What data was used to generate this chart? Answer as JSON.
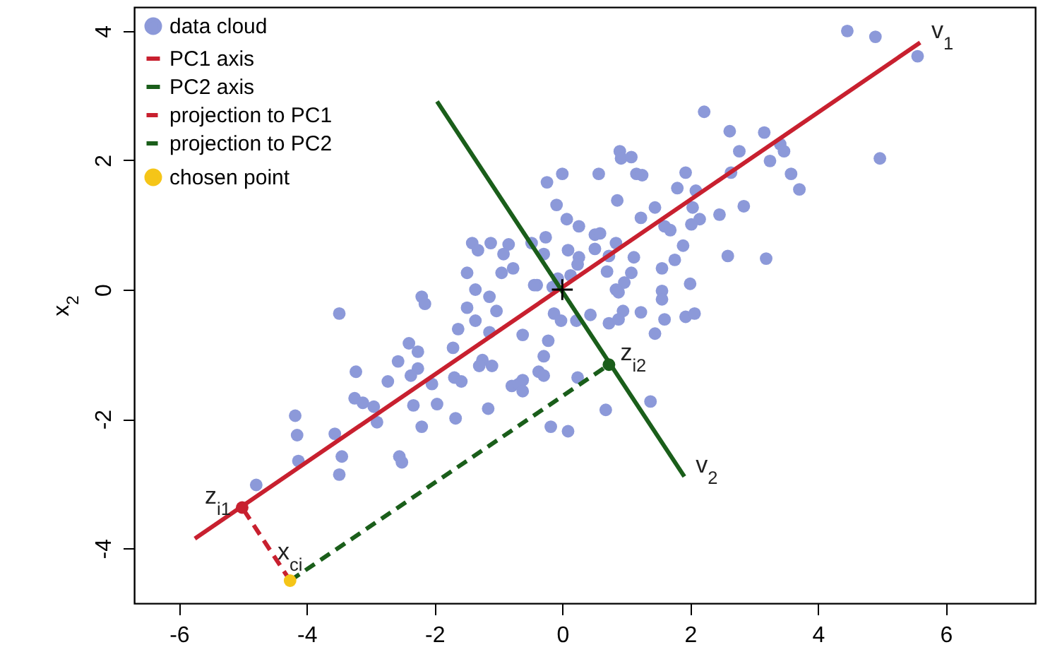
{
  "chart_data": {
    "type": "scatter",
    "ylabel": "x$_{2}$",
    "xlim": [
      -6.7,
      7.4
    ],
    "ylim": [
      -4.85,
      4.37
    ],
    "xticks": [
      -6,
      -4,
      -2,
      0,
      2,
      4,
      6
    ],
    "yticks": [
      -4,
      -2,
      0,
      2,
      4
    ],
    "grid": false,
    "legend": "top left",
    "series": [
      {
        "name": "data cloud",
        "marker": "circle",
        "color": "#8c99d9",
        "x": [
          4.46,
          4.9,
          5.56,
          2.22,
          2.62,
          3.16,
          3.41,
          3.47,
          2.77,
          3.25,
          4.97,
          3.58,
          3.71,
          0.9,
          0.92,
          1.08,
          1.16,
          1.25,
          0.57,
          0.0,
          -0.24,
          1.93,
          1.8,
          2.09,
          2.64,
          0.86,
          -0.09,
          1.45,
          1.23,
          2.04,
          2.46,
          2.84,
          2.15,
          2.02,
          1.6,
          1.69,
          0.07,
          0.26,
          0.51,
          0.59,
          -0.26,
          0.84,
          0.51,
          0.09,
          1.89,
          1.76,
          2.59,
          3.19,
          -0.29,
          0.26,
          0.24,
          0.73,
          1.12,
          0.7,
          1.08,
          1.56,
          0.13,
          0.97,
          0.84,
          0.88,
          1.56,
          1.56,
          2.0,
          -0.4,
          -0.15,
          -1.41,
          -1.12,
          -1.32,
          -0.84,
          -0.92,
          -0.48,
          -1.49,
          -0.95,
          -0.77,
          -0.44,
          -0.07,
          -2.2,
          -2.15,
          -1.36,
          -1.14,
          -1.03,
          -1.49,
          -3.49,
          -0.13,
          -0.02,
          0.44,
          0.73,
          0.95,
          1.23,
          1.6,
          1.93,
          2.07,
          0.22,
          0.88,
          1.45,
          -0.22,
          -0.29,
          -0.37,
          -0.29,
          0.24,
          0.68,
          1.38,
          -0.18,
          0.09,
          -1.63,
          -1.36,
          -1.14,
          -0.62,
          -2.4,
          -2.26,
          -1.71,
          -2.57,
          -2.26,
          -2.37,
          -3.23,
          -2.73,
          -2.04,
          -1.69,
          -1.58,
          -1.25,
          -1.3,
          -1.1,
          -0.79,
          -0.62,
          -0.68,
          -0.62,
          -3.25,
          -3.12,
          -2.95,
          -2.9,
          -2.33,
          -1.96,
          -1.16,
          -1.67,
          -2.2,
          -4.18,
          -4.15,
          -3.56,
          -4.13,
          -3.45,
          -3.49,
          -2.55,
          -2.51,
          -4.79
        ],
        "values": [
          4.0,
          3.91,
          3.61,
          2.75,
          2.45,
          2.43,
          2.25,
          2.14,
          2.14,
          1.99,
          2.03,
          1.79,
          1.55,
          2.14,
          2.03,
          2.05,
          1.79,
          1.77,
          1.79,
          1.79,
          1.66,
          1.81,
          1.57,
          1.53,
          1.81,
          1.38,
          1.31,
          1.27,
          1.11,
          1.27,
          1.16,
          1.29,
          1.09,
          1.01,
          0.98,
          0.92,
          1.09,
          0.98,
          0.85,
          0.87,
          0.81,
          0.72,
          0.63,
          0.61,
          0.68,
          0.46,
          0.52,
          0.48,
          0.55,
          0.5,
          0.39,
          0.52,
          0.5,
          0.28,
          0.26,
          0.33,
          0.22,
          0.11,
          0.0,
          -0.04,
          -0.02,
          -0.15,
          0.09,
          0.07,
          0.04,
          0.72,
          0.72,
          0.61,
          0.7,
          0.55,
          0.72,
          0.26,
          0.26,
          0.33,
          0.07,
          0.17,
          -0.11,
          -0.22,
          0.0,
          -0.11,
          -0.33,
          -0.28,
          -0.37,
          -0.37,
          -0.48,
          -0.39,
          -0.52,
          -0.33,
          -0.35,
          -0.46,
          -0.42,
          -0.37,
          -0.48,
          -0.46,
          -0.68,
          -0.79,
          -1.03,
          -1.27,
          -1.33,
          -1.36,
          -1.86,
          -1.73,
          -2.12,
          -2.19,
          -0.61,
          -0.48,
          -0.66,
          -0.7,
          -0.83,
          -0.96,
          -0.9,
          -1.11,
          -1.22,
          -1.33,
          -1.27,
          -1.42,
          -1.46,
          -1.36,
          -1.42,
          -1.09,
          -1.18,
          -1.18,
          -1.49,
          -1.4,
          -1.46,
          -1.57,
          -1.68,
          -1.75,
          -1.81,
          -2.05,
          -1.79,
          -1.77,
          -1.84,
          -1.99,
          -2.12,
          -1.95,
          -2.25,
          -2.23,
          -2.65,
          -2.58,
          -2.86,
          -2.58,
          -2.67,
          -3.02
        ]
      },
      {
        "name": "PC1 axis",
        "type": "line",
        "line_style": "solid",
        "color": "#c8202f",
        "x": [
          -5.75,
          5.6
        ],
        "values": [
          -3.85,
          3.82
        ]
      },
      {
        "name": "PC2 axis",
        "type": "line",
        "line_style": "solid",
        "color": "#1a5e1a",
        "x": [
          -1.96,
          1.91
        ],
        "values": [
          2.91,
          -2.89
        ]
      },
      {
        "name": "projection to PC1",
        "type": "line",
        "line_style": "dashed",
        "color": "#c8202f",
        "x": [
          -4.26,
          -5.01
        ],
        "values": [
          -4.5,
          -3.37
        ]
      },
      {
        "name": "projection to PC2",
        "type": "line",
        "line_style": "dashed",
        "color": "#1a5e1a",
        "x": [
          -4.26,
          0.73
        ],
        "values": [
          -4.5,
          -1.16
        ]
      },
      {
        "marker": "circle",
        "color": "#c8202f",
        "x": [
          -5.01
        ],
        "values": [
          -3.37
        ]
      },
      {
        "marker": "circle",
        "color": "#1a5e1a",
        "x": [
          0.73
        ],
        "values": [
          -1.16
        ]
      },
      {
        "name": "chosen point",
        "marker": "circle",
        "color": "#f5c518",
        "x": [
          -4.26
        ],
        "values": [
          -4.5
        ]
      },
      {
        "marker": "cross",
        "color": "#000000",
        "x": [
          0
        ],
        "values": [
          0
        ]
      }
    ],
    "annotations": [
      {
        "text": "v$_{1}$",
        "x": 5.6,
        "y": 3.82
      },
      {
        "text": "v$_{2}$",
        "x": 1.91,
        "y": -2.89
      },
      {
        "text": "z$_{i1}$",
        "x": -5.01,
        "y": -3.37
      },
      {
        "text": "z$_{i2}$",
        "x": 0.73,
        "y": -1.16
      },
      {
        "text": "x$_{ci}$",
        "x": -4.26,
        "y": -4.5
      }
    ]
  }
}
